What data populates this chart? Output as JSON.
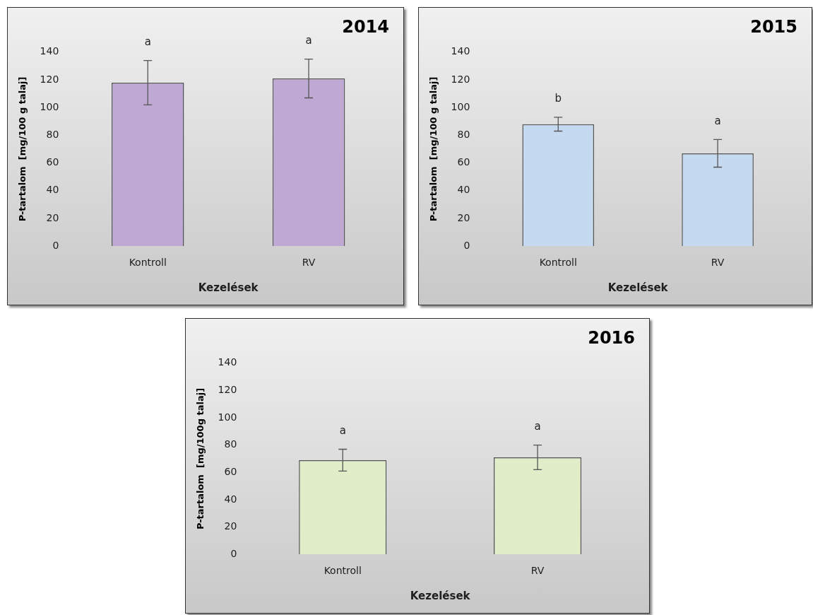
{
  "chart_data": [
    {
      "type": "bar",
      "title": "2014",
      "xlabel": "Kezelések",
      "ylabel": "P-tartalom  [mg/100 g talaj]",
      "categories": [
        "Kontroll",
        "RV"
      ],
      "values": [
        118,
        121
      ],
      "errors": [
        16,
        14
      ],
      "color": "#bfa9d4",
      "ylim": [
        0,
        140
      ],
      "yticks": [
        0,
        20,
        40,
        60,
        80,
        100,
        120,
        140
      ],
      "grid": false,
      "legend": false,
      "annotations": [
        "a",
        "a"
      ]
    },
    {
      "type": "bar",
      "title": "2015",
      "xlabel": "Kezelések",
      "ylabel": "P-tartalom  [mg/100 g talaj]",
      "categories": [
        "Kontroll",
        "RV"
      ],
      "values": [
        88,
        67
      ],
      "errors": [
        5,
        10
      ],
      "color": "#c5d9f1",
      "ylim": [
        0,
        140
      ],
      "yticks": [
        0,
        20,
        40,
        60,
        80,
        100,
        120,
        140
      ],
      "grid": false,
      "legend": false,
      "annotations": [
        "b",
        "a"
      ]
    },
    {
      "type": "bar",
      "title": "2016",
      "xlabel": "Kezelések",
      "ylabel": "P-tartalom  [mg/100g talaj]",
      "categories": [
        "Kontroll",
        "RV"
      ],
      "values": [
        69,
        71
      ],
      "errors": [
        8,
        9
      ],
      "color": "#e0edc8",
      "ylim": [
        0,
        140
      ],
      "yticks": [
        0,
        20,
        40,
        60,
        80,
        100,
        120,
        140
      ],
      "grid": false,
      "legend": false,
      "annotations": [
        "a",
        "a"
      ]
    }
  ]
}
